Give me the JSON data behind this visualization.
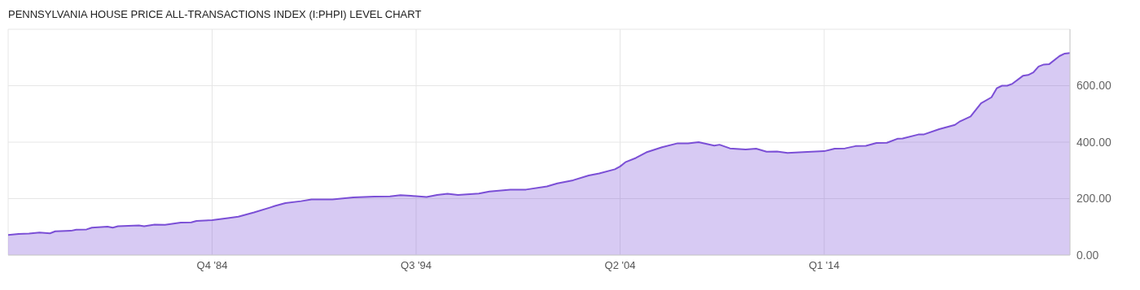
{
  "chart_data": {
    "type": "area",
    "title": "PENNSYLVANIA HOUSE PRICE ALL-TRANSACTIONS INDEX (I:PHPI) LEVEL CHART",
    "x": [
      "1975-01",
      "1975-07",
      "1976-01",
      "1976-07",
      "1977-01",
      "1977-04",
      "1978-01",
      "1978-04",
      "1978-10",
      "1979-01",
      "1979-10",
      "1980-01",
      "1980-04",
      "1981-04",
      "1981-07",
      "1982-01",
      "1982-07",
      "1983-04",
      "1983-10",
      "1984-01",
      "1984-10",
      "1985-07",
      "1986-01",
      "1986-10",
      "1987-07",
      "1987-10",
      "1988-04",
      "1989-01",
      "1989-07",
      "1990-07",
      "1991-07",
      "1992-07",
      "1993-04",
      "1993-10",
      "1994-04",
      "1995-01",
      "1995-07",
      "1996-01",
      "1996-07",
      "1997-07",
      "1998-01",
      "1999-01",
      "1999-10",
      "2000-10",
      "2001-04",
      "2002-01",
      "2002-10",
      "2003-04",
      "2004-01",
      "2004-04",
      "2004-07",
      "2005-01",
      "2005-07",
      "2006-04",
      "2007-01",
      "2007-07",
      "2008-01",
      "2008-10",
      "2009-01",
      "2009-07",
      "2010-04",
      "2010-10",
      "2011-04",
      "2011-10",
      "2012-04",
      "2013-01",
      "2014-01",
      "2014-07",
      "2015-01",
      "2015-07",
      "2016-01",
      "2016-07",
      "2017-01",
      "2017-07",
      "2017-10",
      "2018-07",
      "2018-10",
      "2019-07",
      "2019-10",
      "2020-04",
      "2020-07",
      "2021-01",
      "2021-07",
      "2022-01",
      "2022-04",
      "2022-07",
      "2022-10",
      "2023-01",
      "2023-07",
      "2023-10",
      "2024-01",
      "2024-04",
      "2024-07",
      "2024-10",
      "2025-04",
      "2025-07",
      "2025-10"
    ],
    "series": [
      {
        "color": "#7b4fd6",
        "values": [
          71,
          75,
          76,
          80,
          77,
          84,
          86,
          90,
          91,
          97,
          101,
          97,
          102,
          105,
          102,
          108,
          107,
          115,
          116,
          121,
          124,
          131,
          136,
          151,
          168,
          174,
          184,
          191,
          197,
          197,
          204,
          207,
          208,
          212,
          210,
          206,
          213,
          217,
          213,
          218,
          225,
          232,
          232,
          243,
          254,
          265,
          282,
          289,
          304,
          314,
          329,
          344,
          364,
          382,
          396,
          396,
          400,
          388,
          391,
          378,
          374,
          377,
          366,
          367,
          362,
          365,
          368,
          377,
          378,
          386,
          387,
          397,
          398,
          412,
          413,
          427,
          427,
          446,
          451,
          461,
          474,
          491,
          538,
          559,
          591,
          600,
          600,
          607,
          635,
          638,
          647,
          668,
          675,
          676,
          705,
          714,
          716
        ]
      }
    ],
    "xlim": [
      "1975-01",
      "2025-10"
    ],
    "xticks": [
      {
        "value": "1984-10",
        "label": "Q4 '84"
      },
      {
        "value": "1994-07",
        "label": "Q3 '94"
      },
      {
        "value": "2004-04",
        "label": "Q2 '04"
      },
      {
        "value": "2014-01",
        "label": "Q1 '14"
      }
    ],
    "ylim": [
      0,
      800
    ],
    "yticks": [
      {
        "value": 0,
        "label": "0.00"
      },
      {
        "value": 200,
        "label": "200.00"
      },
      {
        "value": 400,
        "label": "400.00"
      },
      {
        "value": 600,
        "label": "600.00"
      }
    ],
    "grid": true
  }
}
